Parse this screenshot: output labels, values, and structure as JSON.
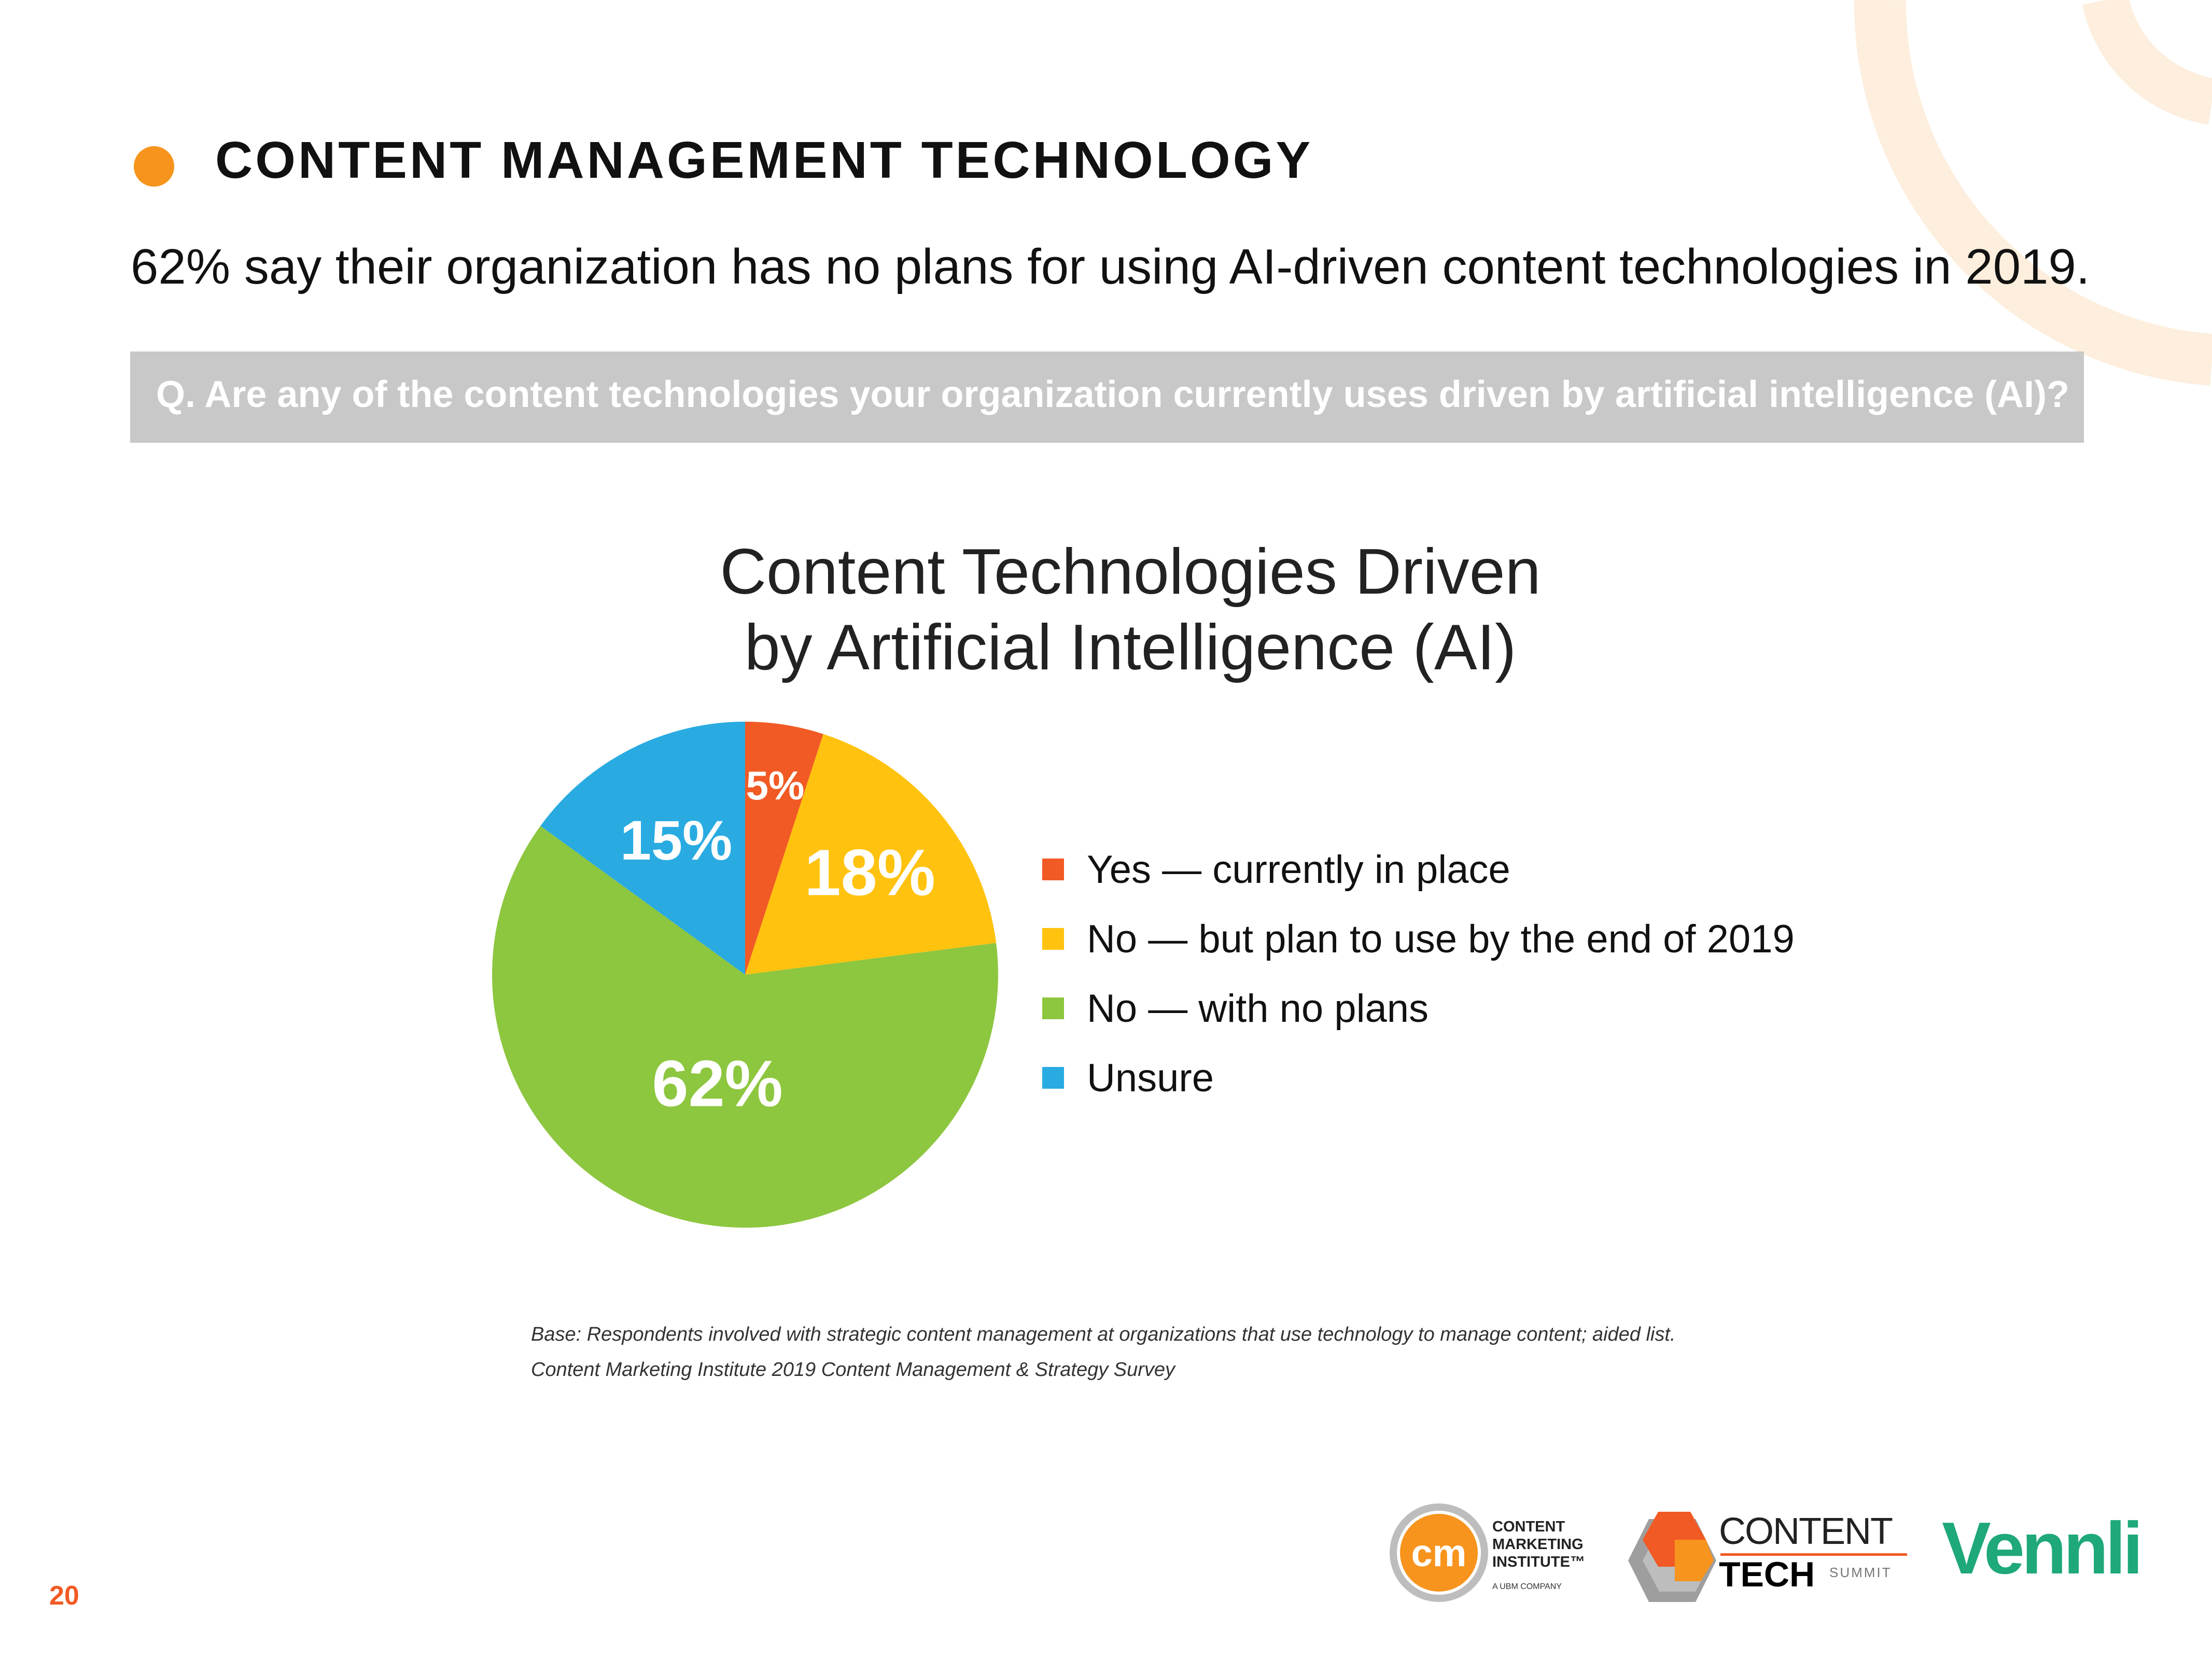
{
  "colors": {
    "accent_orange": "#f7941d",
    "arc_light": "#fdeedd",
    "yes": "#f15a24",
    "plan": "#ffc20e",
    "no_plans": "#8dc63f",
    "unsure": "#29abe2",
    "vennli_green": "#1fa87a",
    "page_number": "#f15a24"
  },
  "header": {
    "section_title": "CONTENT MANAGEMENT TECHNOLOGY",
    "headline": "62% say their organization has no plans for using AI-driven content technologies in 2019."
  },
  "question": {
    "text": "Q. Are any of the content technologies your organization currently uses driven by artificial intelligence (AI)?"
  },
  "chart_data": {
    "type": "pie",
    "title_lines": [
      "Content Technologies Driven",
      "by Artificial Intelligence (AI)"
    ],
    "title": "Content Technologies Driven by Artificial Intelligence (AI)",
    "categories": [
      "Yes — currently in place",
      "No — but plan to use by the end of 2019",
      "No — with no plans",
      "Unsure"
    ],
    "values": [
      5,
      18,
      62,
      15
    ],
    "data_labels": [
      "5%",
      "18%",
      "62%",
      "15%"
    ],
    "legend_position": "right",
    "start": "top, clockwise"
  },
  "legend": {
    "items": [
      {
        "label": "Yes — currently in place",
        "color": "#f15a24"
      },
      {
        "label": "No — but plan to use by the end of 2019",
        "color": "#ffc20e"
      },
      {
        "label": "No — with no plans",
        "color": "#8dc63f"
      },
      {
        "label": "Unsure",
        "color": "#29abe2"
      }
    ]
  },
  "footnote": {
    "base": "Base: Respondents involved with strategic content management at organizations that use technology to manage content; aided list.",
    "source": "Content Marketing Institute 2019 Content Management & Strategy Survey"
  },
  "footer": {
    "page_number": "20",
    "cmi_logo_mark": "cm",
    "cmi_logo_lines": [
      "CONTENT",
      "MARKETING",
      "INSTITUTE™"
    ],
    "cmi_logo_sub": "A UBM COMPANY",
    "cts_content": "CONTENT",
    "cts_tech": "TECH",
    "cts_summit": "SUMMIT",
    "vennli": "Vennli"
  }
}
